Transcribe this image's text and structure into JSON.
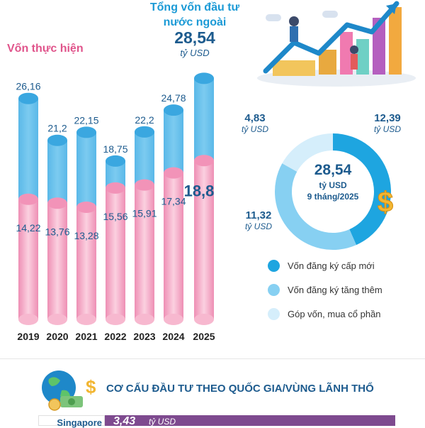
{
  "header": {
    "title_line1": "Tổng vốn đầu tư",
    "title_line2": "nước ngoài",
    "total_value": "28,54",
    "total_unit": "tỷ USD"
  },
  "colors": {
    "blue_bar": "#7ccbf0",
    "pink_bar": "#f5a6c4",
    "dark_blue": "#1d5b8e",
    "pink_text": "#e0548b",
    "donut_new": "#1ea5e0",
    "donut_increase": "#87d0f2",
    "donut_contribution": "#d5eefb",
    "purple_bar": "#7e4a8f"
  },
  "chart_data": [
    {
      "type": "bar",
      "categories": [
        "2019",
        "2020",
        "2021",
        "2022",
        "2023",
        "2024",
        "2025"
      ],
      "series": [
        {
          "name": "",
          "values": [
            26.16,
            21.2,
            22.15,
            18.75,
            22.2,
            24.78,
            28.54
          ]
        },
        {
          "name": "Vốn thực hiện",
          "values": [
            14.22,
            13.76,
            13.28,
            15.56,
            15.91,
            17.34,
            18.8
          ]
        }
      ],
      "value_labels": {
        "total": [
          "26,16",
          "21,2",
          "22,15",
          "18,75",
          "22,2",
          "24,78",
          ""
        ],
        "realized": [
          "14,22",
          "13,76",
          "13,28",
          "15,56",
          "15,91",
          "17,34",
          "18,8"
        ]
      },
      "ylim": [
        0,
        30
      ]
    },
    {
      "type": "pie",
      "center_value": "28,54",
      "center_unit": "tỷ USD",
      "center_period": "9 tháng/2025",
      "slices": [
        {
          "name": "Vốn đăng ký cấp mới",
          "value": 12.39,
          "label": "12,39",
          "unit": "tỷ USD"
        },
        {
          "name": "Vốn đăng ký tăng thêm",
          "value": 11.32,
          "label": "11,32",
          "unit": "tỷ USD"
        },
        {
          "name": "Góp vốn, mua cổ phần",
          "value": 4.83,
          "label": "4,83",
          "unit": "tỷ USD"
        }
      ]
    }
  ],
  "section": {
    "title": "CƠ CẤU ĐẦU TƯ THEO QUỐC GIA/VÙNG LÃNH THỔ",
    "first_country": "Singapore",
    "first_value": "3,43",
    "first_unit": "tỷ USD"
  },
  "icons": [
    "growth-chart-illustration-icon",
    "dollar-sign-icon",
    "globe-money-icon"
  ]
}
